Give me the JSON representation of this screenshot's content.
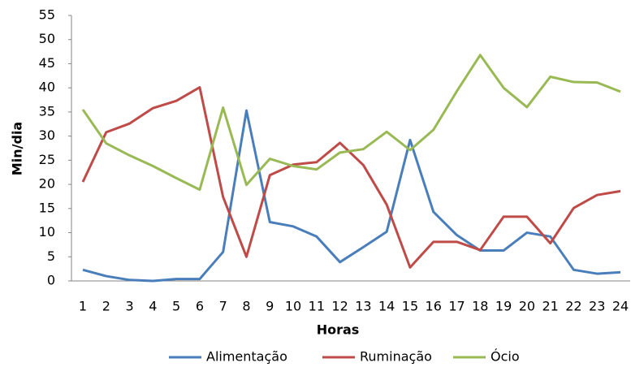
{
  "chart_data": {
    "type": "line",
    "x_label": "Horas",
    "y_label": "Min/dia",
    "categories": [
      "1",
      "2",
      "3",
      "4",
      "5",
      "6",
      "7",
      "8",
      "9",
      "10",
      "11",
      "12",
      "13",
      "14",
      "15",
      "16",
      "17",
      "18",
      "19",
      "20",
      "21",
      "22",
      "23",
      "24"
    ],
    "series": [
      {
        "name": "Alimentação",
        "color": "#4a7ebb",
        "values": [
          2.3,
          1,
          0.2,
          0,
          0.4,
          0.4,
          6,
          35.3,
          12.2,
          11.3,
          9.2,
          3.9,
          7,
          10.2,
          29.2,
          14.3,
          9.5,
          6.3,
          6.3,
          10,
          9.2,
          2.3,
          1.5,
          1.8
        ]
      },
      {
        "name": "Ruminação",
        "color": "#be4b48",
        "values": [
          20.5,
          30.8,
          32.6,
          35.8,
          37.3,
          40.1,
          17.4,
          5,
          21.9,
          24.1,
          24.6,
          28.6,
          24,
          15.8,
          2.8,
          8.1,
          8.1,
          6.4,
          13.3,
          13.3,
          7.8,
          15.1,
          17.8,
          18.6
        ]
      },
      {
        "name": "Ócio",
        "color": "#98b954",
        "values": [
          35.5,
          28.5,
          26,
          23.8,
          21.3,
          18.9,
          35.9,
          19.9,
          25.3,
          23.8,
          23.1,
          26.6,
          27.3,
          30.9,
          27.1,
          31.3,
          39.3,
          46.8,
          40,
          36,
          42.3,
          41.2,
          41.1,
          39.2
        ]
      }
    ],
    "ylim": [
      0,
      55
    ],
    "yticks": [
      0,
      5,
      10,
      15,
      20,
      25,
      30,
      35,
      40,
      45,
      50,
      55
    ],
    "grid": false,
    "legend": "bottom"
  }
}
